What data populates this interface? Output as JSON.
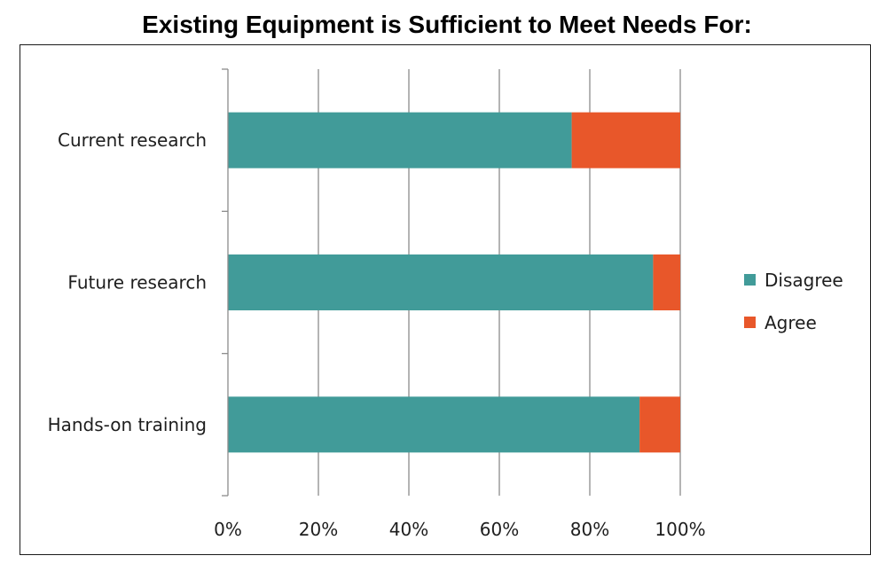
{
  "chart_data": {
    "type": "bar",
    "orientation": "horizontal",
    "stacked": "percent",
    "title": "Existing Equipment is Sufficient to Meet Needs For:",
    "categories": [
      "Current research",
      "Future research",
      "Hands-on training"
    ],
    "series": [
      {
        "name": "Disagree",
        "values": [
          76,
          94,
          91
        ],
        "color": "#419b99"
      },
      {
        "name": "Agree",
        "values": [
          24,
          6,
          9
        ],
        "color": "#e8572a"
      }
    ],
    "xlim": [
      0,
      100
    ],
    "xticks": [
      "0%",
      "20%",
      "40%",
      "60%",
      "80%",
      "100%"
    ],
    "grid": true,
    "legend": "right"
  }
}
